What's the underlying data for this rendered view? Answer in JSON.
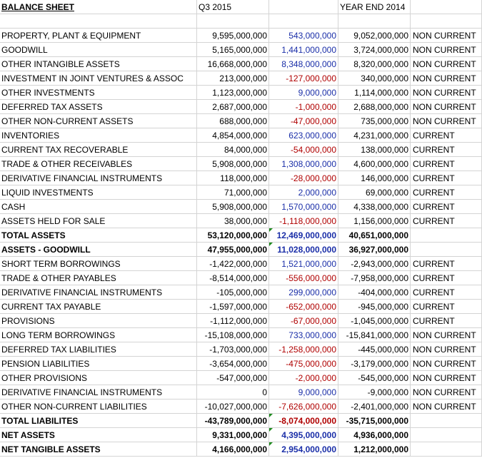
{
  "header": {
    "title": "BALANCE SHEET",
    "col_q3": "Q3 2015",
    "col_change": "",
    "col_ye": "YEAR END 2014",
    "col_type": ""
  },
  "rows": [
    {
      "label": "PROPERTY, PLANT & EQUIPMENT",
      "q3": "9,595,000,000",
      "change": "543,000,000",
      "sign": "pos",
      "ye": "9,052,000,000",
      "type": "NON CURRENT",
      "bold": false,
      "marker": false
    },
    {
      "label": "GOODWILL",
      "q3": "5,165,000,000",
      "change": "1,441,000,000",
      "sign": "pos",
      "ye": "3,724,000,000",
      "type": "NON CURRENT",
      "bold": false,
      "marker": false
    },
    {
      "label": "OTHER INTANGIBLE ASSETS",
      "q3": "16,668,000,000",
      "change": "8,348,000,000",
      "sign": "pos",
      "ye": "8,320,000,000",
      "type": "NON CURRENT",
      "bold": false,
      "marker": false
    },
    {
      "label": "INVESTMENT IN JOINT VENTURES & ASSOC",
      "q3": "213,000,000",
      "change": "-127,000,000",
      "sign": "neg",
      "ye": "340,000,000",
      "type": "NON CURRENT",
      "bold": false,
      "marker": false
    },
    {
      "label": "OTHER INVESTMENTS",
      "q3": "1,123,000,000",
      "change": "9,000,000",
      "sign": "pos",
      "ye": "1,114,000,000",
      "type": "NON CURRENT",
      "bold": false,
      "marker": false
    },
    {
      "label": "DEFERRED TAX ASSETS",
      "q3": "2,687,000,000",
      "change": "-1,000,000",
      "sign": "neg",
      "ye": "2,688,000,000",
      "type": "NON CURRENT",
      "bold": false,
      "marker": false
    },
    {
      "label": "OTHER NON-CURRENT ASSETS",
      "q3": "688,000,000",
      "change": "-47,000,000",
      "sign": "neg",
      "ye": "735,000,000",
      "type": "NON CURRENT",
      "bold": false,
      "marker": false
    },
    {
      "label": "INVENTORIES",
      "q3": "4,854,000,000",
      "change": "623,000,000",
      "sign": "pos",
      "ye": "4,231,000,000",
      "type": "CURRENT",
      "bold": false,
      "marker": false
    },
    {
      "label": "CURRENT TAX RECOVERABLE",
      "q3": "84,000,000",
      "change": "-54,000,000",
      "sign": "neg",
      "ye": "138,000,000",
      "type": "CURRENT",
      "bold": false,
      "marker": false
    },
    {
      "label": "TRADE & OTHER RECEIVABLES",
      "q3": "5,908,000,000",
      "change": "1,308,000,000",
      "sign": "pos",
      "ye": "4,600,000,000",
      "type": "CURRENT",
      "bold": false,
      "marker": false
    },
    {
      "label": "DERIVATIVE FINANCIAL INSTRUMENTS",
      "q3": "118,000,000",
      "change": "-28,000,000",
      "sign": "neg",
      "ye": "146,000,000",
      "type": "CURRENT",
      "bold": false,
      "marker": false
    },
    {
      "label": "LIQUID INVESTMENTS",
      "q3": "71,000,000",
      "change": "2,000,000",
      "sign": "pos",
      "ye": "69,000,000",
      "type": "CURRENT",
      "bold": false,
      "marker": false
    },
    {
      "label": "CASH",
      "q3": "5,908,000,000",
      "change": "1,570,000,000",
      "sign": "pos",
      "ye": "4,338,000,000",
      "type": "CURRENT",
      "bold": false,
      "marker": false
    },
    {
      "label": "ASSETS HELD FOR SALE",
      "q3": "38,000,000",
      "change": "-1,118,000,000",
      "sign": "neg",
      "ye": "1,156,000,000",
      "type": "CURRENT",
      "bold": false,
      "marker": false
    },
    {
      "label": "TOTAL ASSETS",
      "q3": "53,120,000,000",
      "change": "12,469,000,000",
      "sign": "pos",
      "ye": "40,651,000,000",
      "type": "",
      "bold": true,
      "marker": true
    },
    {
      "label": "ASSETS - GOODWILL",
      "q3": "47,955,000,000",
      "change": "11,028,000,000",
      "sign": "pos",
      "ye": "36,927,000,000",
      "type": "",
      "bold": true,
      "marker": true
    },
    {
      "label": "SHORT TERM BORROWINGS",
      "q3": "-1,422,000,000",
      "change": "1,521,000,000",
      "sign": "pos",
      "ye": "-2,943,000,000",
      "type": "CURRENT",
      "bold": false,
      "marker": false
    },
    {
      "label": "TRADE & OTHER PAYABLES",
      "q3": "-8,514,000,000",
      "change": "-556,000,000",
      "sign": "neg",
      "ye": "-7,958,000,000",
      "type": "CURRENT",
      "bold": false,
      "marker": false
    },
    {
      "label": "DERIVATIVE FINANCIAL INSTRUMENTS",
      "q3": "-105,000,000",
      "change": "299,000,000",
      "sign": "pos",
      "ye": "-404,000,000",
      "type": "CURRENT",
      "bold": false,
      "marker": false
    },
    {
      "label": "CURRENT TAX PAYABLE",
      "q3": "-1,597,000,000",
      "change": "-652,000,000",
      "sign": "neg",
      "ye": "-945,000,000",
      "type": "CURRENT",
      "bold": false,
      "marker": false
    },
    {
      "label": "PROVISIONS",
      "q3": "-1,112,000,000",
      "change": "-67,000,000",
      "sign": "neg",
      "ye": "-1,045,000,000",
      "type": "CURRENT",
      "bold": false,
      "marker": false
    },
    {
      "label": "LONG TERM BORROWINGS",
      "q3": "-15,108,000,000",
      "change": "733,000,000",
      "sign": "pos",
      "ye": "-15,841,000,000",
      "type": "NON CURRENT",
      "bold": false,
      "marker": false
    },
    {
      "label": "DEFERRED TAX LIABILITIES",
      "q3": "-1,703,000,000",
      "change": "-1,258,000,000",
      "sign": "neg",
      "ye": "-445,000,000",
      "type": "NON CURRENT",
      "bold": false,
      "marker": false
    },
    {
      "label": "PENSION LIABILITIES",
      "q3": "-3,654,000,000",
      "change": "-475,000,000",
      "sign": "neg",
      "ye": "-3,179,000,000",
      "type": "NON CURRENT",
      "bold": false,
      "marker": false
    },
    {
      "label": "OTHER PROVISIONS",
      "q3": "-547,000,000",
      "change": "-2,000,000",
      "sign": "neg",
      "ye": "-545,000,000",
      "type": "NON CURRENT",
      "bold": false,
      "marker": false
    },
    {
      "label": "DERIVATIVE FINANCIAL INSTRUMENTS",
      "q3": "0",
      "change": "9,000,000",
      "sign": "pos",
      "ye": "-9,000,000",
      "type": "NON CURRENT",
      "bold": false,
      "marker": false
    },
    {
      "label": "OTHER NON-CURRENT LIABILITIES",
      "q3": "-10,027,000,000",
      "change": "-7,626,000,000",
      "sign": "neg",
      "ye": "-2,401,000,000",
      "type": "NON CURRENT",
      "bold": false,
      "marker": false
    },
    {
      "label": "TOTAL LIABILITES",
      "q3": "-43,789,000,000",
      "change": "-8,074,000,000",
      "sign": "neg",
      "ye": "-35,715,000,000",
      "type": "",
      "bold": true,
      "marker": true
    },
    {
      "label": "NET ASSETS",
      "q3": "9,331,000,000",
      "change": "4,395,000,000",
      "sign": "pos",
      "ye": "4,936,000,000",
      "type": "",
      "bold": true,
      "marker": true
    },
    {
      "label": "NET TANGIBLE ASSETS",
      "q3": "4,166,000,000",
      "change": "2,954,000,000",
      "sign": "pos",
      "ye": "1,212,000,000",
      "type": "",
      "bold": true,
      "marker": true
    }
  ]
}
